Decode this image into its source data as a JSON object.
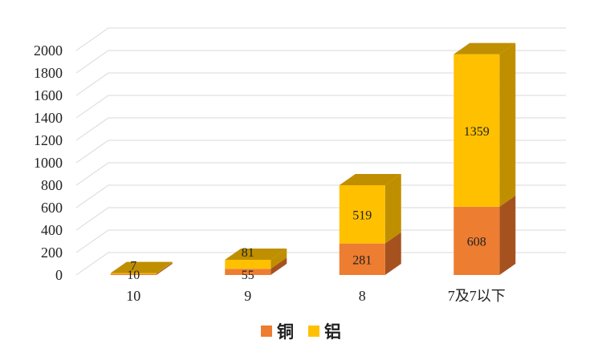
{
  "chart_data": {
    "type": "bar",
    "subtype": "stacked-3d",
    "categories": [
      "10",
      "9",
      "8",
      "7及7以下"
    ],
    "series": [
      {
        "name": "铜",
        "color": "#ED7D31",
        "values": [
          10,
          55,
          281,
          608
        ]
      },
      {
        "name": "铝",
        "color": "#FFC000",
        "values": [
          7,
          81,
          519,
          1359
        ]
      }
    ],
    "yticks": [
      0,
      200,
      400,
      600,
      800,
      1000,
      1200,
      1400,
      1600,
      1800,
      2000
    ],
    "ylim": [
      0,
      2000
    ],
    "grid": true,
    "legend": "bottom"
  }
}
